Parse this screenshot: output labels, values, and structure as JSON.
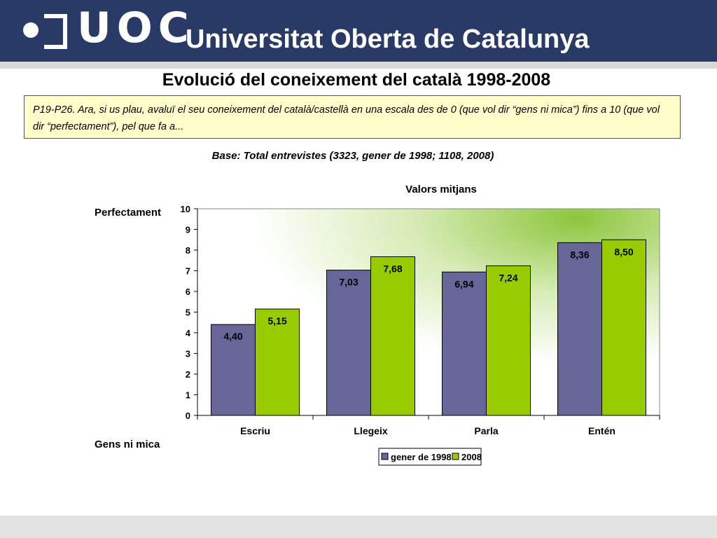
{
  "header": {
    "logo_text": "UOC",
    "institution": "Universitat Oberta de Catalunya"
  },
  "title": "Evolució del coneixement del català 1998-2008",
  "question": "P19-P26. Ara, si us plau, avaluï el seu coneixement del català/castellà en una escala des de 0 (que vol dir “gens ni mica”) fins a 10 (que vol dir “perfectament”), pel que fa a...",
  "base": "Base: Total entrevistes (3323, gener de 1998; 1108, 2008)",
  "scale_labels": {
    "top": "Perfectament",
    "bottom": "Gens ni mica"
  },
  "colors": {
    "header_bg": "#2a3a66",
    "question_bg": "#ffffcc",
    "series_1998": "#666699",
    "series_2008": "#99cc00"
  },
  "chart_data": {
    "type": "bar",
    "title": "Valors mitjans",
    "categories": [
      "Escriu",
      "Llegeix",
      "Parla",
      "Entén"
    ],
    "series": [
      {
        "name": "gener de 1998",
        "values": [
          4.4,
          7.03,
          6.94,
          8.36
        ],
        "labels": [
          "4,40",
          "7,03",
          "6,94",
          "8,36"
        ],
        "color": "#666699"
      },
      {
        "name": "2008",
        "values": [
          5.15,
          7.68,
          7.24,
          8.5
        ],
        "labels": [
          "5,15",
          "7,68",
          "7,24",
          "8,50"
        ],
        "color": "#99cc00"
      }
    ],
    "ylim": [
      0,
      10
    ],
    "yticks": [
      0,
      1,
      2,
      3,
      4,
      5,
      6,
      7,
      8,
      9,
      10
    ],
    "grid": false,
    "legend_position": "bottom"
  }
}
